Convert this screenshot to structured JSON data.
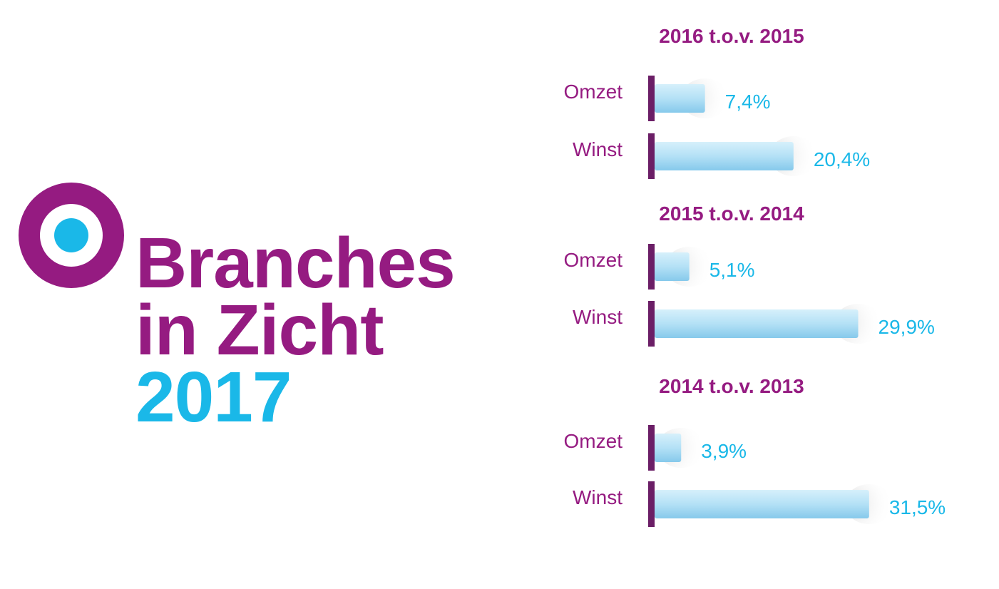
{
  "colors": {
    "purple": "#951B81",
    "cyan": "#1AB8E8",
    "bar_light": "#B9E3F7",
    "bar_dark": "#7FC7EA",
    "bar_cap": "#6B1E66"
  },
  "logo": {
    "icon": "target-ring-icon",
    "title_line1": "Branches",
    "title_line2": "in Zicht",
    "title_year": "2017"
  },
  "chart_data": {
    "type": "bar",
    "orientation": "horizontal",
    "unit": "%",
    "xlim": [
      0,
      35
    ],
    "grid": false,
    "groups": [
      {
        "title": "2016 t.o.v. 2015",
        "categories": [
          "Omzet",
          "Winst"
        ],
        "values": [
          7.4,
          20.4
        ],
        "value_labels": [
          "7,4%",
          "20,4%"
        ]
      },
      {
        "title": "2015 t.o.v. 2014",
        "categories": [
          "Omzet",
          "Winst"
        ],
        "values": [
          5.1,
          29.9
        ],
        "value_labels": [
          "5,1%",
          "29,9%"
        ]
      },
      {
        "title": "2014 t.o.v. 2013",
        "categories": [
          "Omzet",
          "Winst"
        ],
        "values": [
          3.9,
          31.5
        ],
        "value_labels": [
          "3,9%",
          "31,5%"
        ]
      }
    ]
  }
}
